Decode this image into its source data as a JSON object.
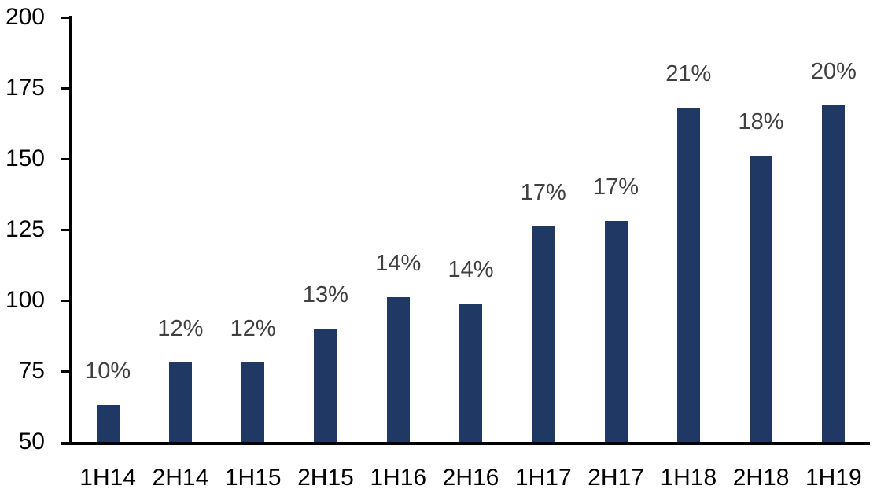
{
  "chart_data": {
    "type": "bar",
    "title": "",
    "xlabel": "",
    "ylabel": "",
    "categories": [
      "1H14",
      "2H14",
      "1H15",
      "2H15",
      "1H16",
      "2H16",
      "1H17",
      "2H17",
      "1H18",
      "2H18",
      "1H19"
    ],
    "values": [
      63,
      78,
      78,
      90,
      101,
      99,
      126,
      128,
      168,
      151,
      169
    ],
    "bar_labels": [
      "10%",
      "12%",
      "12%",
      "13%",
      "14%",
      "14%",
      "17%",
      "17%",
      "21%",
      "18%",
      "20%"
    ],
    "ylim": [
      50,
      200
    ],
    "yticks": [
      "50",
      "75",
      "100",
      "125",
      "150",
      "175",
      "200"
    ],
    "ytick_values": [
      50,
      75,
      100,
      125,
      150,
      175,
      200
    ],
    "grid": false,
    "legend": "none",
    "colors": {
      "bar": "#1F3864",
      "data_label": "#404040",
      "axis_text": "#000000",
      "axis_line": "#000000",
      "background": "#FFFFFF"
    }
  }
}
